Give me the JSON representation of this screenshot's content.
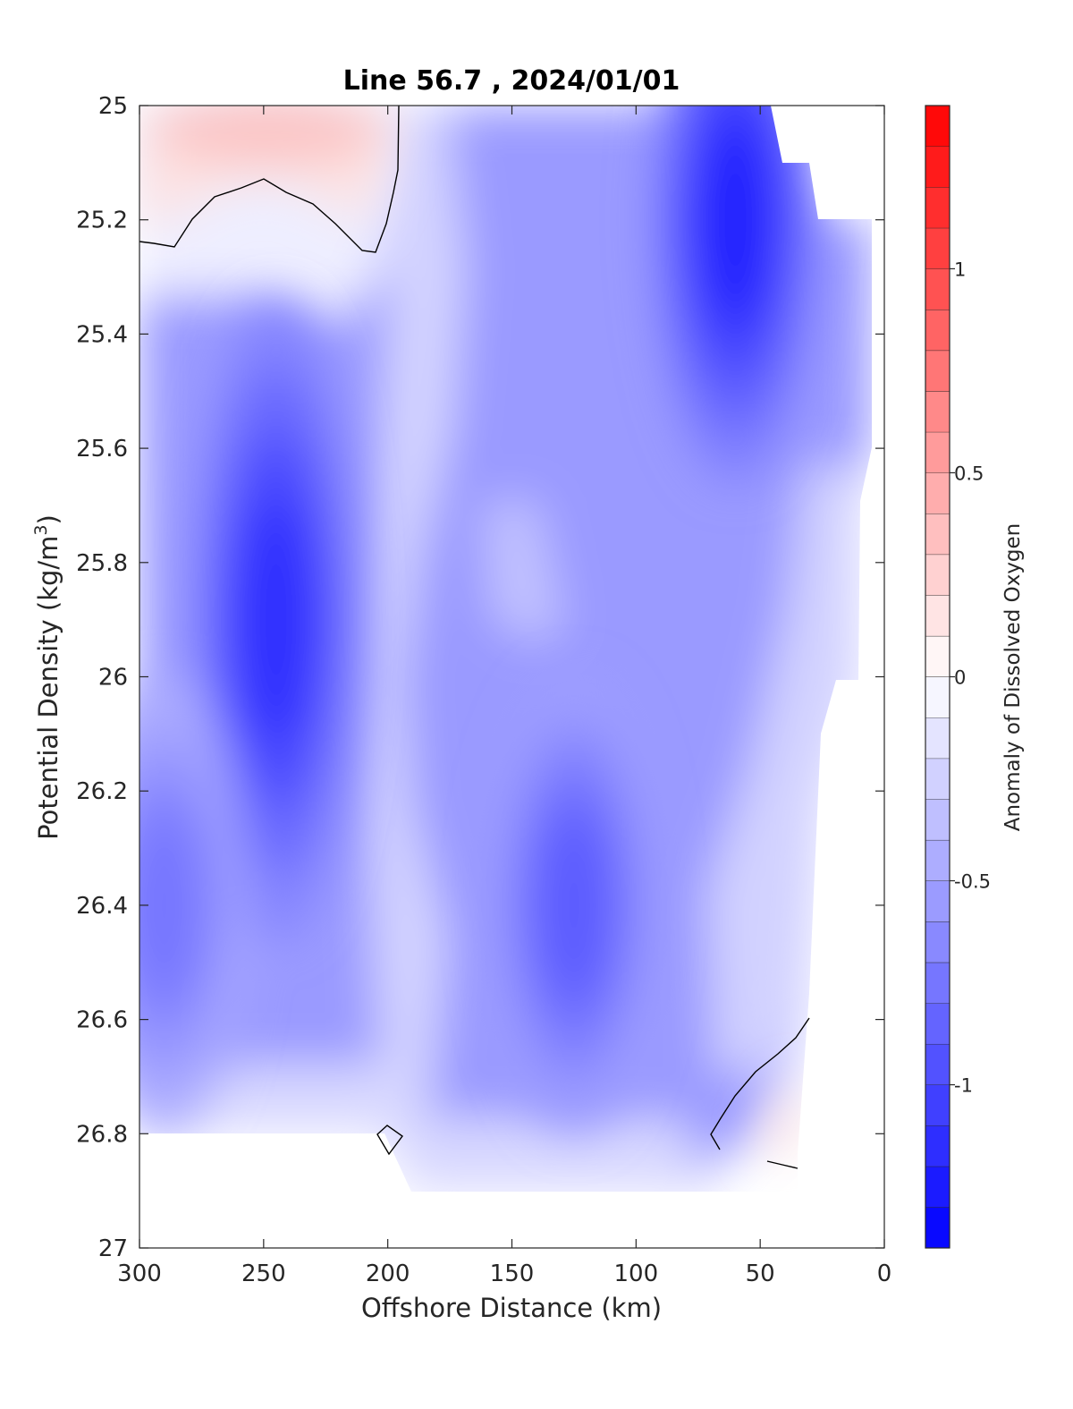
{
  "chart_data": {
    "type": "heatmap",
    "title": "Line 56.7 , 2024/01/01",
    "xlabel": "Offshore Distance (km)",
    "ylabel": {
      "main": "Potential Density (kg/m",
      "sup": "3",
      "close": ")"
    },
    "colorbar_label": "Anomaly of Dissolved Oxygen",
    "xlim": [
      300,
      0
    ],
    "ylim": [
      25,
      27
    ],
    "y_reversed": true,
    "x_ticks": [
      300,
      250,
      200,
      150,
      100,
      50,
      0
    ],
    "x_tick_labels": [
      "300",
      "250",
      "200",
      "150",
      "100",
      "50",
      "0"
    ],
    "y_ticks": [
      25,
      25.2,
      25.4,
      25.6,
      25.8,
      26,
      26.2,
      26.4,
      26.6,
      26.8,
      27
    ],
    "y_tick_labels": [
      "25",
      "25.2",
      "25.4",
      "25.6",
      "25.8",
      "26",
      "26.2",
      "26.4",
      "26.6",
      "26.8",
      "27"
    ],
    "colorbar": {
      "range": [
        -1.4,
        1.4
      ],
      "step": 0.1,
      "ticks": [
        1,
        0.5,
        0,
        -0.5,
        -1
      ],
      "tick_labels": [
        "1",
        "0.5",
        "0",
        "-0.5",
        "-1"
      ],
      "colormap": "blue-white-red",
      "low_color": "#0000ff",
      "mid_color": "#ffffff",
      "high_color": "#ff0000"
    },
    "contour_levels_drawn": [
      0
    ],
    "features": [
      {
        "x": 245,
        "y": 25.9,
        "value": -1.15
      },
      {
        "x": 60,
        "y": 25.2,
        "value": -1.2
      },
      {
        "x": 125,
        "y": 26.4,
        "value": -0.9
      },
      {
        "x": 290,
        "y": 26.4,
        "value": -0.75
      },
      {
        "x": 225,
        "y": 25.05,
        "value": 0.25
      },
      {
        "x": 40,
        "y": 26.8,
        "value": 0.05
      }
    ]
  }
}
